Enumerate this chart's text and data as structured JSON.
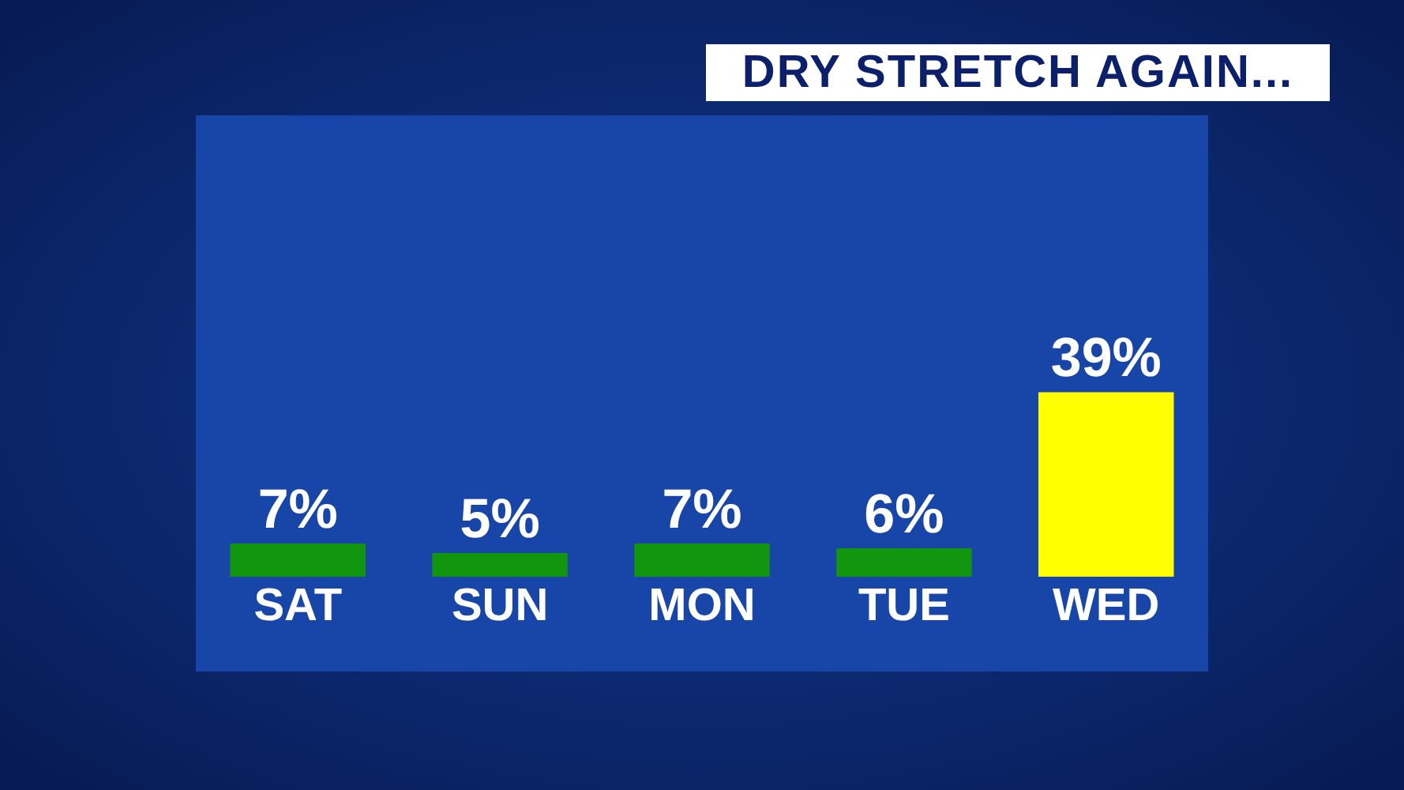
{
  "chart_data": {
    "type": "bar",
    "title": "DRY STRETCH AGAIN...",
    "categories": [
      "SAT",
      "SUN",
      "MON",
      "TUE",
      "WED"
    ],
    "values": [
      7,
      5,
      7,
      6,
      39
    ],
    "value_labels": [
      "7%",
      "5%",
      "7%",
      "6%",
      "39%"
    ],
    "colors": [
      "#12960f",
      "#12960f",
      "#12960f",
      "#12960f",
      "#ffff00"
    ]
  }
}
